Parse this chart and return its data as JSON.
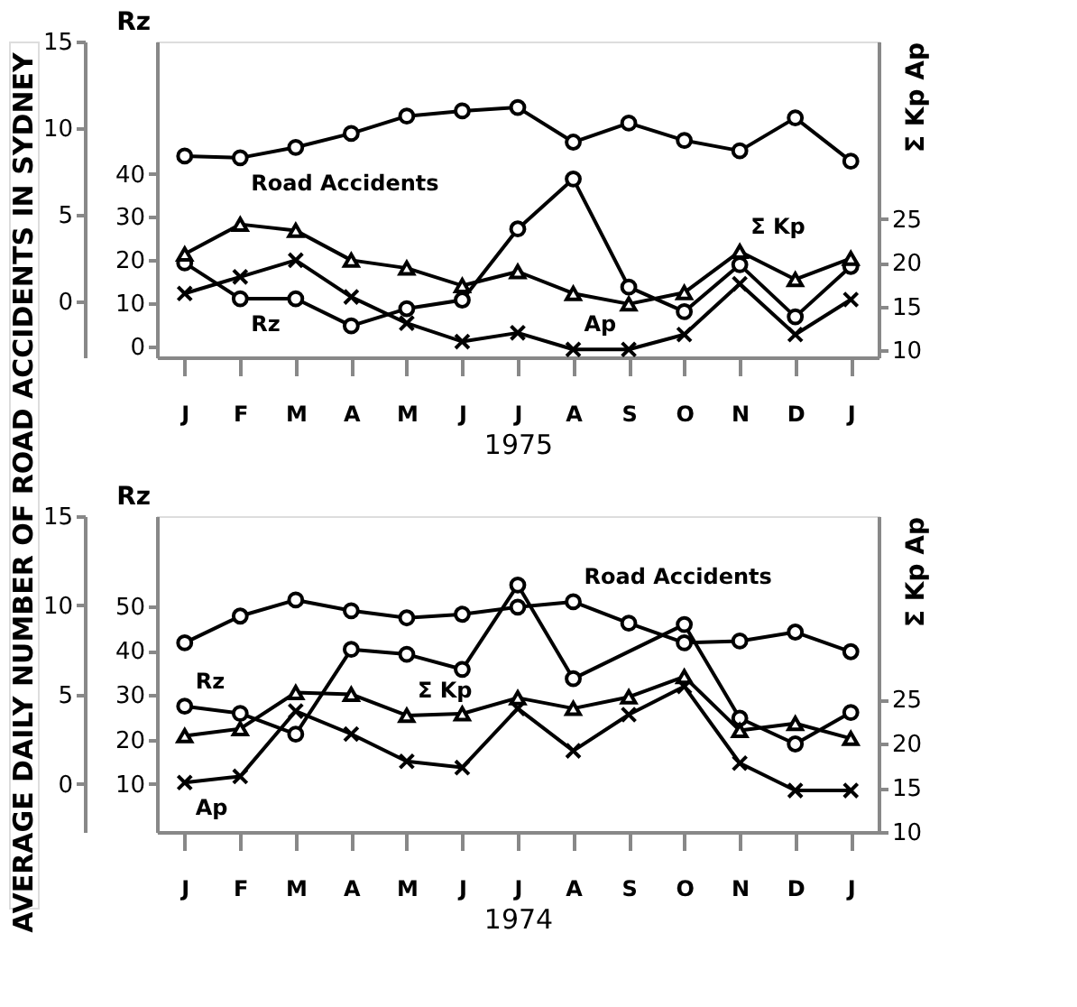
{
  "chart_data": [
    {
      "type": "line",
      "xlabel": "1975",
      "ylabel": "AVERAGE DAILY NUMBER OF ROAD ACCIDENTS IN SYDNEY",
      "y2label": "Rz",
      "y3label": "Σ Kp  Ap",
      "categories": [
        "J",
        "F",
        "M",
        "A",
        "M",
        "J",
        "J",
        "A",
        "S",
        "O",
        "N",
        "D",
        "J"
      ],
      "ylim": [
        -3.2,
        15
      ],
      "yticks": [
        0,
        5,
        10,
        15
      ],
      "y2lim": [
        -2.6,
        70.7
      ],
      "y2ticks": [
        0,
        10,
        20,
        30,
        40
      ],
      "y3lim": [
        9.2,
        45.3
      ],
      "y3ticks": [
        10,
        15,
        20,
        25
      ],
      "grid": false,
      "legend": false,
      "line_style": "solid",
      "series": [
        {
          "name": "Road Accidents",
          "color": "#000000",
          "marker": "circle",
          "axis": "y",
          "values": [
            8.4,
            8.3,
            8.9,
            9.7,
            10.7,
            11.0,
            11.2,
            9.2,
            10.3,
            9.3,
            8.7,
            10.6,
            8.1
          ]
        },
        {
          "name": "Rz",
          "color": "#000000",
          "marker": "circle",
          "axis": "y2",
          "values": [
            19.3,
            11,
            11,
            4.7,
            8.7,
            10.7,
            27.2,
            38.8,
            13.7,
            8,
            18.9,
            6.8,
            18.5
          ]
        },
        {
          "name": "Σ Kp",
          "color": "#000000",
          "marker": "triangle",
          "axis": "y3",
          "values": [
            21.0,
            24.4,
            23.7,
            20.3,
            19.4,
            17.4,
            19.0,
            16.5,
            15.3,
            16.6,
            21.3,
            18.1,
            20.5
          ]
        },
        {
          "name": "Ap",
          "color": "#000000",
          "marker": "cross",
          "axis": "y3",
          "values": [
            16.5,
            18.4,
            20.3,
            16.1,
            13.1,
            11.0,
            12.0,
            10.1,
            10.1,
            11.8,
            17.6,
            11.8,
            15.8
          ]
        }
      ]
    },
    {
      "type": "line",
      "xlabel": "1974",
      "y2label": "Rz",
      "y3label": "Σ Kp  Ap",
      "categories": [
        "J",
        "F",
        "M",
        "A",
        "M",
        "J",
        "J",
        "A",
        "S",
        "O",
        "N",
        "D",
        "J"
      ],
      "ylim": [
        -2.7,
        15
      ],
      "yticks": [
        0,
        5,
        10,
        15
      ],
      "y2lim": [
        -0.8,
        70.3
      ],
      "y2ticks": [
        10,
        20,
        30,
        40,
        50
      ],
      "y3lim": [
        10,
        45.8
      ],
      "y3ticks": [
        10,
        15,
        20,
        25
      ],
      "grid": false,
      "legend": false,
      "line_style": "solid",
      "series": [
        {
          "name": "Road Accidents",
          "color": "#000000",
          "marker": "circle",
          "axis": "y",
          "values": [
            7.9,
            9.4,
            10.3,
            9.7,
            9.3,
            9.5,
            9.9,
            10.2,
            9.0,
            7.9,
            8.0,
            8.5,
            7.4
          ]
        },
        {
          "name": "Rz",
          "color": "#000000",
          "marker": "circle",
          "axis": "y2",
          "values": [
            27.5,
            25.9,
            21.2,
            40.3,
            39.2,
            35.8,
            54.8,
            33.7,
            null,
            45.9,
            24.8,
            19,
            26.1
          ]
        },
        {
          "name": "Σ Kp",
          "color": "#000000",
          "marker": "triangle",
          "axis": "y3",
          "values": [
            20.9,
            21.7,
            25.8,
            25.6,
            23.2,
            23.4,
            25.2,
            24.0,
            25.3,
            27.6,
            21.5,
            22.3,
            20.6
          ]
        },
        {
          "name": "Ap",
          "color": "#000000",
          "marker": "cross",
          "axis": "y3",
          "values": [
            15.6,
            16.3,
            23.7,
            21.1,
            18.0,
            17.3,
            24.0,
            19.2,
            23.3,
            26.5,
            17.8,
            14.7,
            14.7
          ]
        }
      ]
    }
  ]
}
